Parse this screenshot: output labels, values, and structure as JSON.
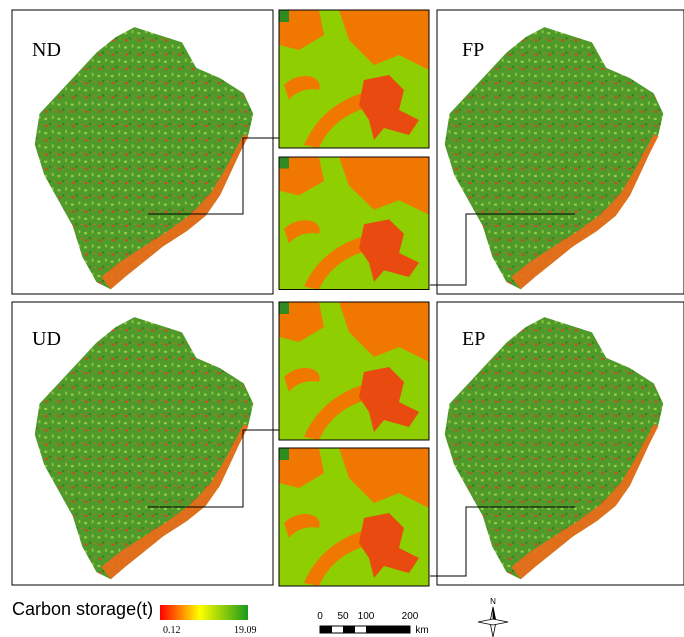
{
  "panels": [
    {
      "label": "ND"
    },
    {
      "label": "FP"
    },
    {
      "label": "UD"
    },
    {
      "label": "EP"
    }
  ],
  "legend": {
    "title": "Carbon storage(t)",
    "min": "0.12",
    "max": "19.09"
  },
  "scale_bar": {
    "ticks": [
      "0",
      "50",
      "100",
      "200"
    ],
    "unit": "km"
  },
  "north": "N"
}
